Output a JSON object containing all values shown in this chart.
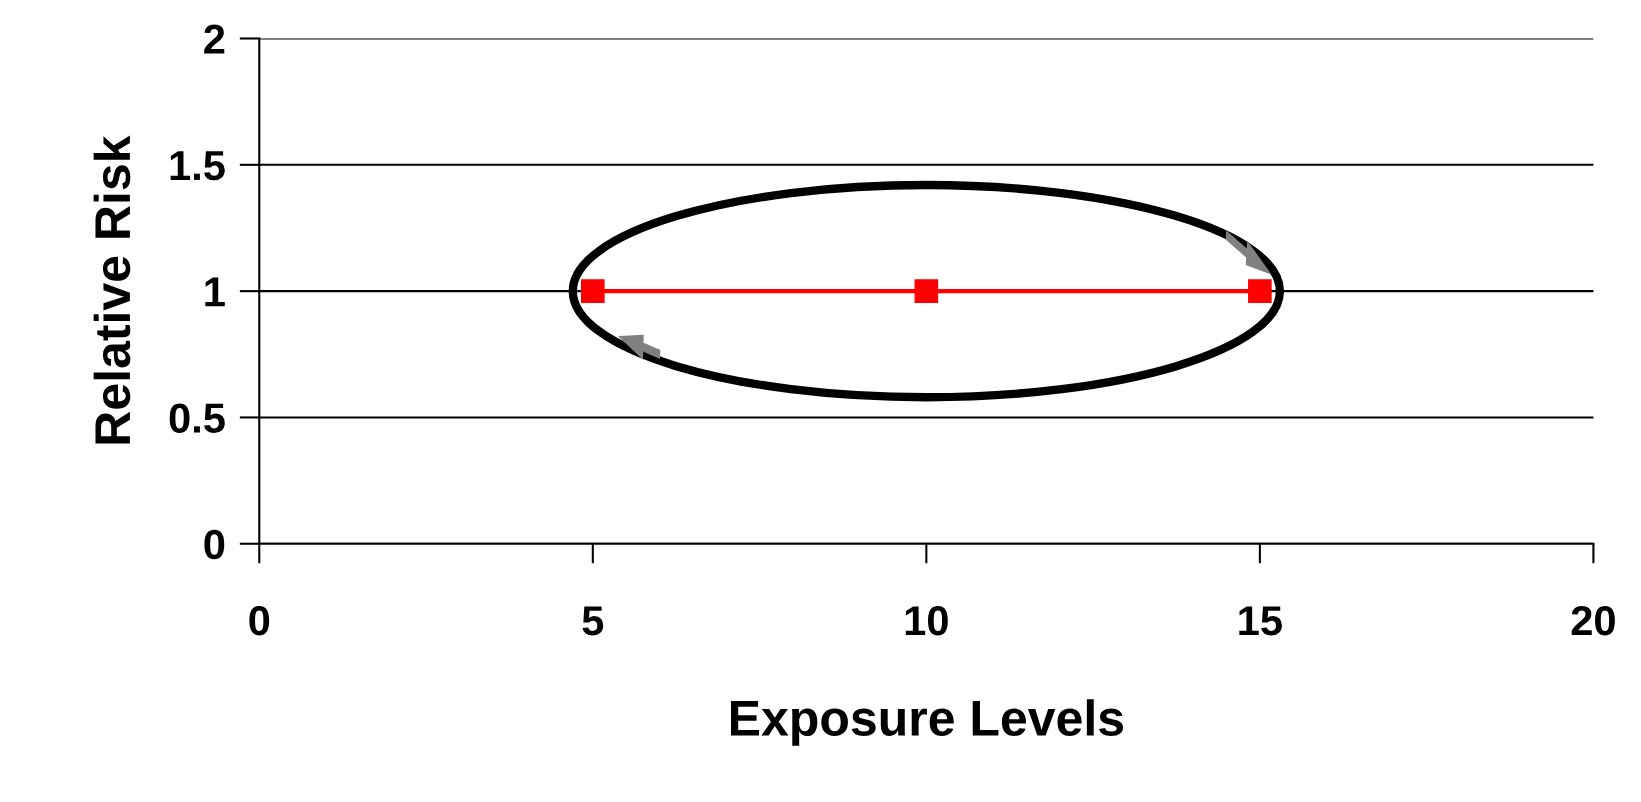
{
  "chart_data": {
    "type": "line",
    "xlabel": "Exposure Levels",
    "ylabel": "Relative Risk",
    "x": [
      5,
      10,
      15
    ],
    "series": [
      {
        "color": "#ff0000",
        "values": [
          1,
          1,
          1
        ]
      }
    ],
    "marker": "square",
    "line_style": "solid",
    "xlim": [
      0,
      20
    ],
    "xticks": [
      0,
      5,
      10,
      15,
      20
    ],
    "ylim": [
      0,
      2
    ],
    "yticks": [
      0,
      0.5,
      1,
      1.5,
      2
    ],
    "grid": "y"
  }
}
